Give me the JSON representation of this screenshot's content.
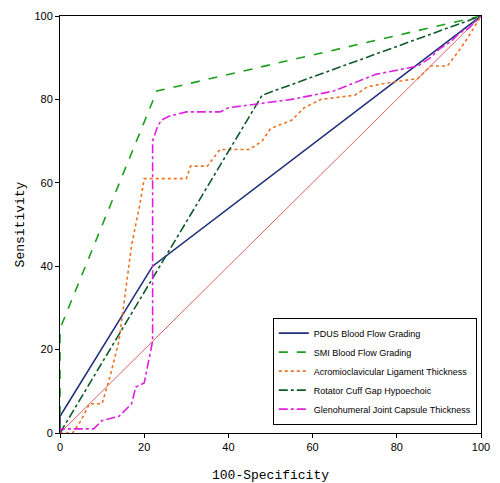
{
  "chart_data": {
    "type": "line",
    "x_label": "100-Specificity",
    "y_label": "Sensitivity",
    "xlim": [
      0,
      100
    ],
    "ylim": [
      0,
      100
    ],
    "xticks": [
      0,
      20,
      40,
      60,
      80,
      100
    ],
    "yticks": [
      0,
      20,
      40,
      60,
      80,
      100
    ],
    "grid": false,
    "legend": "bottom right",
    "series": [
      {
        "color": "#e06060",
        "line_style": "solid",
        "x": [
          0,
          100
        ],
        "values": [
          0,
          100
        ]
      },
      {
        "name": "PDUS Blood Flow Grading",
        "color": "#1f2f7a",
        "line_style": "solid",
        "x": [
          0,
          0,
          22,
          100
        ],
        "values": [
          0,
          4,
          40,
          100
        ]
      },
      {
        "name": "SMI Blood Flow Grading",
        "color": "#1aa01a",
        "line_style": "dash",
        "x": [
          0,
          0,
          23,
          100
        ],
        "values": [
          0,
          25,
          82,
          100
        ]
      },
      {
        "name": "Acromioclavicular Ligament Thickness",
        "color": "#f07020",
        "line_style": "dot",
        "x": [
          0,
          3,
          5,
          7,
          10,
          12,
          14,
          15,
          16,
          17,
          18,
          19,
          20,
          30,
          31,
          35,
          38,
          45,
          48,
          50,
          55,
          58,
          62,
          70,
          73,
          78,
          85,
          88,
          92,
          95,
          97,
          100
        ],
        "values": [
          0,
          0,
          3,
          7,
          7,
          14,
          22,
          30,
          37,
          45,
          50,
          55,
          61,
          61,
          64,
          64,
          68,
          68,
          70,
          73,
          75,
          78,
          80,
          81,
          83,
          84,
          85,
          88,
          88,
          92,
          95,
          100
        ]
      },
      {
        "name": "Rotator Cuff Gap Hypoechoic",
        "color": "#0f5a2a",
        "line_style": "dashdot",
        "x": [
          0,
          48,
          100
        ],
        "values": [
          0,
          81,
          100
        ]
      },
      {
        "name": "Glenohumeral Joint Capsule Thickness",
        "color": "#e020e0",
        "line_style": "dashdot",
        "x": [
          0,
          0,
          8,
          10,
          14,
          17,
          18,
          20,
          21,
          22,
          22,
          23,
          24,
          26,
          30,
          38,
          40,
          48,
          55,
          60,
          65,
          70,
          75,
          80,
          85,
          88,
          90,
          93,
          95,
          97,
          100
        ],
        "values": [
          0,
          1,
          1,
          3,
          4,
          7,
          11,
          12,
          17,
          22,
          70,
          73,
          75,
          76,
          77,
          77,
          78,
          79,
          80,
          81,
          82,
          84,
          86,
          87,
          88,
          90,
          92,
          94,
          96,
          97,
          100
        ]
      }
    ]
  }
}
